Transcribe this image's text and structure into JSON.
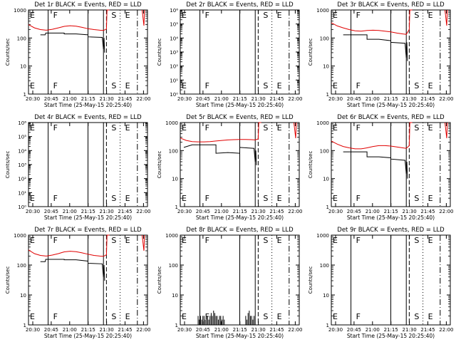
{
  "chart_data": [
    {
      "id": "det1",
      "type": "line",
      "title": "Det 1r BLACK = Events, RED = LLD",
      "xlabel": "Start Time (25-May-15 20:25:40)",
      "ylabel": "Counts/sec",
      "yscale": "log",
      "ylim": [
        1,
        1000
      ],
      "yticks": [
        "1",
        "10",
        "100",
        "1000"
      ],
      "xticks": [
        "20:30",
        "20:45",
        "21:00",
        "21:15",
        "21:30",
        "21:45",
        "22:00"
      ],
      "markers": [
        {
          "label": "E",
          "x": -0.03
        },
        {
          "label": "F",
          "x": 0.165
        },
        {
          "label": "S",
          "x": 0.655
        },
        {
          "label": "E",
          "x": 0.77
        }
      ],
      "series": [
        {
          "name": "RED = LLD",
          "color": "#e00000",
          "points": [
            [
              0,
              300
            ],
            [
              0.05,
              230
            ],
            [
              0.1,
              200
            ],
            [
              0.15,
              190
            ],
            [
              0.2,
              205
            ],
            [
              0.25,
              230
            ],
            [
              0.3,
              260
            ],
            [
              0.35,
              275
            ],
            [
              0.4,
              265
            ],
            [
              0.45,
              240
            ],
            [
              0.5,
              215
            ],
            [
              0.55,
              200
            ],
            [
              0.6,
              190
            ],
            [
              0.63,
              185
            ],
            [
              0.655,
              210
            ],
            [
              0.66,
              1000
            ],
            [
              0.68,
              1000
            ]
          ]
        },
        {
          "name": "BLACK = Events",
          "color": "#000000",
          "points": [
            [
              0.1,
              130
            ],
            [
              0.14,
              130
            ],
            [
              0.145,
              150
            ],
            [
              0.3,
              150
            ],
            [
              0.3,
              140
            ],
            [
              0.4,
              140
            ],
            [
              0.5,
              130
            ],
            [
              0.5,
              110
            ],
            [
              0.62,
              105
            ],
            [
              0.63,
              40
            ],
            [
              0.635,
              100
            ],
            [
              0.64,
              30
            ]
          ]
        }
      ]
    },
    {
      "id": "det2",
      "type": "line",
      "title": "Det 2r BLACK = Events, RED = LLD",
      "xlabel": "Start Time (25-May-15 20:25:40)",
      "ylabel": "Counts/sec",
      "yscale": "log",
      "ylim": [
        1,
        1000000
      ],
      "yticks": [
        "10⁰",
        "10¹",
        "10²",
        "10³",
        "10⁴",
        "10⁵",
        "10⁶"
      ],
      "xticks": [
        "20:30",
        "20:45",
        "21:00",
        "21:15",
        "21:30",
        "21:45",
        "22:00"
      ],
      "markers": [
        {
          "label": "E",
          "x": -0.03
        },
        {
          "label": "F",
          "x": 0.165
        },
        {
          "label": "S",
          "x": 0.655
        },
        {
          "label": "E",
          "x": 0.77
        }
      ],
      "series": []
    },
    {
      "id": "det3",
      "type": "line",
      "title": "Det 3r BLACK = Events, RED = LLD",
      "xlabel": "Start Time (25-May-15 20:25:40)",
      "ylabel": "Counts/sec",
      "yscale": "log",
      "ylim": [
        1,
        1000
      ],
      "yticks": [
        "1",
        "10",
        "100",
        "1000"
      ],
      "xticks": [
        "20:30",
        "20:45",
        "21:00",
        "21:15",
        "21:30",
        "21:45",
        "22:00"
      ],
      "markers": [
        {
          "label": "E",
          "x": -0.03
        },
        {
          "label": "F",
          "x": 0.165
        },
        {
          "label": "S",
          "x": 0.655
        },
        {
          "label": "E",
          "x": 0.77
        }
      ],
      "series": [
        {
          "name": "RED = LLD",
          "color": "#e00000",
          "points": [
            [
              0,
              350
            ],
            [
              0.05,
              270
            ],
            [
              0.1,
              230
            ],
            [
              0.15,
              200
            ],
            [
              0.2,
              180
            ],
            [
              0.25,
              175
            ],
            [
              0.3,
              185
            ],
            [
              0.35,
              190
            ],
            [
              0.4,
              185
            ],
            [
              0.45,
              175
            ],
            [
              0.5,
              165
            ],
            [
              0.55,
              150
            ],
            [
              0.6,
              140
            ],
            [
              0.63,
              135
            ],
            [
              0.655,
              200
            ],
            [
              0.66,
              1000
            ],
            [
              0.68,
              1000
            ]
          ]
        },
        {
          "name": "BLACK = Events",
          "color": "#000000",
          "points": [
            [
              0.1,
              130
            ],
            [
              0.3,
              130
            ],
            [
              0.3,
              90
            ],
            [
              0.4,
              90
            ],
            [
              0.5,
              80
            ],
            [
              0.5,
              70
            ],
            [
              0.62,
              65
            ],
            [
              0.63,
              20
            ],
            [
              0.635,
              70
            ],
            [
              0.64,
              15
            ]
          ]
        }
      ]
    },
    {
      "id": "det4",
      "type": "line",
      "title": "Det 4r BLACK = Events, RED = LLD",
      "xlabel": "Start Time (25-May-15 20:25:40)",
      "ylabel": "Counts/sec",
      "yscale": "log",
      "ylim": [
        1,
        1000000
      ],
      "yticks": [
        "10⁰",
        "10¹",
        "10²",
        "10³",
        "10⁴",
        "10⁵",
        "10⁶"
      ],
      "xticks": [
        "20:30",
        "20:45",
        "21:00",
        "21:15",
        "21:30",
        "21:45",
        "22:00"
      ],
      "markers": [
        {
          "label": "E",
          "x": -0.03
        },
        {
          "label": "F",
          "x": 0.165
        },
        {
          "label": "S",
          "x": 0.655
        },
        {
          "label": "E",
          "x": 0.77
        }
      ],
      "series": []
    },
    {
      "id": "det5",
      "type": "line",
      "title": "Det 5r BLACK = Events, RED = LLD",
      "xlabel": "Start Time (25-May-15 20:25:40)",
      "ylabel": "Counts/sec",
      "yscale": "log",
      "ylim": [
        1,
        1000
      ],
      "yticks": [
        "1",
        "10",
        "100",
        "1000"
      ],
      "xticks": [
        "20:30",
        "20:45",
        "21:00",
        "21:15",
        "21:30",
        "21:45",
        "22:00"
      ],
      "markers": [
        {
          "label": "E",
          "x": -0.03
        },
        {
          "label": "F",
          "x": 0.165
        },
        {
          "label": "S",
          "x": 0.655
        },
        {
          "label": "E",
          "x": 0.77
        }
      ],
      "series": [
        {
          "name": "RED = LLD",
          "color": "#e00000",
          "points": [
            [
              0,
              280
            ],
            [
              0.05,
              230
            ],
            [
              0.1,
              210
            ],
            [
              0.15,
              205
            ],
            [
              0.2,
              205
            ],
            [
              0.25,
              210
            ],
            [
              0.3,
              220
            ],
            [
              0.35,
              230
            ],
            [
              0.4,
              240
            ],
            [
              0.45,
              245
            ],
            [
              0.5,
              250
            ],
            [
              0.55,
              250
            ],
            [
              0.6,
              245
            ],
            [
              0.63,
              240
            ],
            [
              0.655,
              260
            ],
            [
              0.66,
              1000
            ],
            [
              0.68,
              1000
            ]
          ]
        },
        {
          "name": "BLACK = Events",
          "color": "#000000",
          "points": [
            [
              0.03,
              130
            ],
            [
              0.1,
              160
            ],
            [
              0.3,
              160
            ],
            [
              0.3,
              80
            ],
            [
              0.4,
              85
            ],
            [
              0.5,
              80
            ],
            [
              0.5,
              130
            ],
            [
              0.62,
              120
            ],
            [
              0.63,
              40
            ],
            [
              0.635,
              100
            ],
            [
              0.64,
              30
            ]
          ]
        }
      ]
    },
    {
      "id": "det6",
      "type": "line",
      "title": "Det 6r BLACK = Events, RED = LLD",
      "xlabel": "Start Time (25-May-15 20:25:40)",
      "ylabel": "Counts/sec",
      "yscale": "log",
      "ylim": [
        1,
        1000
      ],
      "yticks": [
        "1",
        "10",
        "100",
        "1000"
      ],
      "xticks": [
        "20:30",
        "20:45",
        "21:00",
        "21:15",
        "21:30",
        "21:45",
        "22:00"
      ],
      "markers": [
        {
          "label": "E",
          "x": -0.03
        },
        {
          "label": "F",
          "x": 0.165
        },
        {
          "label": "S",
          "x": 0.655
        },
        {
          "label": "E",
          "x": 0.77
        }
      ],
      "series": [
        {
          "name": "RED = LLD",
          "color": "#e00000",
          "points": [
            [
              0,
              220
            ],
            [
              0.05,
              170
            ],
            [
              0.1,
              140
            ],
            [
              0.15,
              125
            ],
            [
              0.2,
              115
            ],
            [
              0.25,
              115
            ],
            [
              0.3,
              125
            ],
            [
              0.35,
              140
            ],
            [
              0.4,
              150
            ],
            [
              0.45,
              150
            ],
            [
              0.5,
              145
            ],
            [
              0.55,
              135
            ],
            [
              0.6,
              125
            ],
            [
              0.63,
              120
            ],
            [
              0.655,
              150
            ],
            [
              0.66,
              1000
            ],
            [
              0.68,
              1000
            ]
          ]
        },
        {
          "name": "BLACK = Events",
          "color": "#000000",
          "points": [
            [
              0.1,
              90
            ],
            [
              0.3,
              90
            ],
            [
              0.3,
              60
            ],
            [
              0.4,
              60
            ],
            [
              0.5,
              55
            ],
            [
              0.5,
              50
            ],
            [
              0.62,
              45
            ],
            [
              0.63,
              15
            ],
            [
              0.635,
              40
            ],
            [
              0.64,
              10
            ]
          ]
        }
      ]
    },
    {
      "id": "det7",
      "type": "line",
      "title": "Det 7r BLACK = Events, RED = LLD",
      "xlabel": "Start Time (25-May-15 20:25:40)",
      "ylabel": "Counts/sec",
      "yscale": "log",
      "ylim": [
        1,
        1000
      ],
      "yticks": [
        "1",
        "10",
        "100",
        "1000"
      ],
      "xticks": [
        "20:30",
        "20:45",
        "21:00",
        "21:15",
        "21:30",
        "21:45",
        "22:00"
      ],
      "markers": [
        {
          "label": "E",
          "x": -0.03
        },
        {
          "label": "F",
          "x": 0.165
        },
        {
          "label": "S",
          "x": 0.655
        },
        {
          "label": "E",
          "x": 0.77
        }
      ],
      "series": [
        {
          "name": "RED = LLD",
          "color": "#e00000",
          "points": [
            [
              0,
              320
            ],
            [
              0.05,
              240
            ],
            [
              0.1,
              210
            ],
            [
              0.15,
              200
            ],
            [
              0.2,
              215
            ],
            [
              0.25,
              240
            ],
            [
              0.3,
              275
            ],
            [
              0.35,
              290
            ],
            [
              0.4,
              280
            ],
            [
              0.45,
              255
            ],
            [
              0.5,
              230
            ],
            [
              0.55,
              210
            ],
            [
              0.6,
              200
            ],
            [
              0.63,
              195
            ],
            [
              0.655,
              220
            ],
            [
              0.66,
              1000
            ],
            [
              0.68,
              1000
            ]
          ]
        },
        {
          "name": "BLACK = Events",
          "color": "#000000",
          "points": [
            [
              0.1,
              130
            ],
            [
              0.14,
              130
            ],
            [
              0.145,
              155
            ],
            [
              0.3,
              155
            ],
            [
              0.3,
              150
            ],
            [
              0.4,
              150
            ],
            [
              0.5,
              135
            ],
            [
              0.5,
              115
            ],
            [
              0.62,
              110
            ],
            [
              0.63,
              40
            ],
            [
              0.635,
              100
            ],
            [
              0.64,
              30
            ]
          ]
        }
      ]
    },
    {
      "id": "det8",
      "type": "line",
      "title": "Det 8r BLACK = Events, RED = LLD",
      "xlabel": "Start Time (25-May-15 20:25:40)",
      "ylabel": "Counts/sec",
      "yscale": "log",
      "ylim": [
        1,
        1000
      ],
      "yticks": [
        "1",
        "10",
        "100",
        "1000"
      ],
      "xticks": [
        "20:30",
        "20:45",
        "21:00",
        "21:15",
        "21:30",
        "21:45",
        "22:00"
      ],
      "markers": [
        {
          "label": "E",
          "x": -0.03
        },
        {
          "label": "F",
          "x": 0.165
        },
        {
          "label": "S",
          "x": 0.655
        },
        {
          "label": "E",
          "x": 0.77
        }
      ],
      "series": [
        {
          "name": "BLACK = Events",
          "color": "#000000",
          "bursts": [
            [
              0.15,
              2
            ],
            [
              0.16,
              1.5
            ],
            [
              0.17,
              2
            ],
            [
              0.18,
              1.5
            ],
            [
              0.19,
              2
            ],
            [
              0.2,
              2
            ],
            [
              0.21,
              1.5
            ],
            [
              0.22,
              2
            ],
            [
              0.23,
              2
            ],
            [
              0.24,
              1.5
            ],
            [
              0.25,
              2
            ],
            [
              0.26,
              2.5
            ],
            [
              0.27,
              2
            ],
            [
              0.28,
              3
            ],
            [
              0.29,
              2.5
            ],
            [
              0.3,
              2
            ],
            [
              0.31,
              2
            ],
            [
              0.32,
              1.5
            ],
            [
              0.33,
              2
            ],
            [
              0.34,
              2
            ],
            [
              0.35,
              1.5
            ],
            [
              0.36,
              2
            ],
            [
              0.37,
              1.5
            ],
            [
              0.55,
              2
            ],
            [
              0.56,
              1.5
            ],
            [
              0.57,
              2.5
            ],
            [
              0.58,
              3
            ],
            [
              0.59,
              2
            ],
            [
              0.6,
              2
            ],
            [
              0.61,
              1.5
            ],
            [
              0.62,
              2
            ]
          ]
        }
      ]
    },
    {
      "id": "det9",
      "type": "line",
      "title": "Det 9r BLACK = Events, RED = LLD",
      "xlabel": "Start Time (25-May-15 20:25:40)",
      "ylabel": "Counts/sec",
      "yscale": "log",
      "ylim": [
        1,
        1000
      ],
      "yticks": [
        "1",
        "10",
        "100",
        "1000"
      ],
      "xticks": [
        "20:30",
        "20:45",
        "21:00",
        "21:15",
        "21:30",
        "21:45",
        "22:00"
      ],
      "markers": [
        {
          "label": "E",
          "x": -0.03
        },
        {
          "label": "F",
          "x": 0.165
        },
        {
          "label": "S",
          "x": 0.655
        },
        {
          "label": "E",
          "x": 0.77
        }
      ],
      "series": []
    }
  ]
}
